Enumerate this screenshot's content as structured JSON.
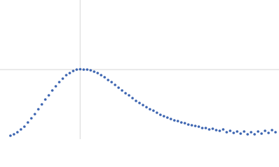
{
  "chart_data": {
    "type": "scatter",
    "color": "#3a63b0",
    "grid": true,
    "xlim": [
      0,
      4
    ],
    "ylim": [
      0,
      2
    ],
    "xticks": [
      1.15
    ],
    "yticks": [
      1
    ],
    "x": [
      0.15,
      0.2,
      0.25,
      0.3,
      0.35,
      0.4,
      0.45,
      0.5,
      0.55,
      0.6,
      0.65,
      0.7,
      0.75,
      0.8,
      0.85,
      0.9,
      0.95,
      1.0,
      1.05,
      1.1,
      1.15,
      1.2,
      1.25,
      1.3,
      1.35,
      1.4,
      1.45,
      1.5,
      1.55,
      1.6,
      1.65,
      1.7,
      1.75,
      1.8,
      1.85,
      1.9,
      1.95,
      2.0,
      2.05,
      2.1,
      2.15,
      2.2,
      2.25,
      2.3,
      2.35,
      2.4,
      2.45,
      2.5,
      2.55,
      2.6,
      2.65,
      2.7,
      2.75,
      2.8,
      2.85,
      2.9,
      2.95,
      3.0,
      3.05,
      3.1,
      3.15,
      3.2,
      3.25,
      3.3,
      3.35,
      3.4,
      3.45,
      3.5,
      3.55,
      3.6,
      3.65,
      3.7,
      3.75,
      3.8,
      3.85,
      3.9,
      3.95
    ],
    "values": [
      0.05,
      0.07,
      0.1,
      0.14,
      0.18,
      0.24,
      0.3,
      0.36,
      0.43,
      0.5,
      0.57,
      0.63,
      0.7,
      0.76,
      0.82,
      0.87,
      0.92,
      0.95,
      0.98,
      1.0,
      1.005,
      1.0,
      1.0,
      0.99,
      0.97,
      0.95,
      0.92,
      0.89,
      0.85,
      0.82,
      0.78,
      0.74,
      0.7,
      0.66,
      0.63,
      0.59,
      0.55,
      0.52,
      0.49,
      0.46,
      0.43,
      0.41,
      0.38,
      0.35,
      0.33,
      0.31,
      0.29,
      0.27,
      0.26,
      0.24,
      0.23,
      0.21,
      0.2,
      0.19,
      0.18,
      0.16,
      0.16,
      0.14,
      0.15,
      0.13,
      0.12,
      0.14,
      0.1,
      0.12,
      0.09,
      0.11,
      0.08,
      0.11,
      0.07,
      0.1,
      0.07,
      0.11,
      0.08,
      0.12,
      0.09,
      0.13,
      0.1
    ]
  }
}
